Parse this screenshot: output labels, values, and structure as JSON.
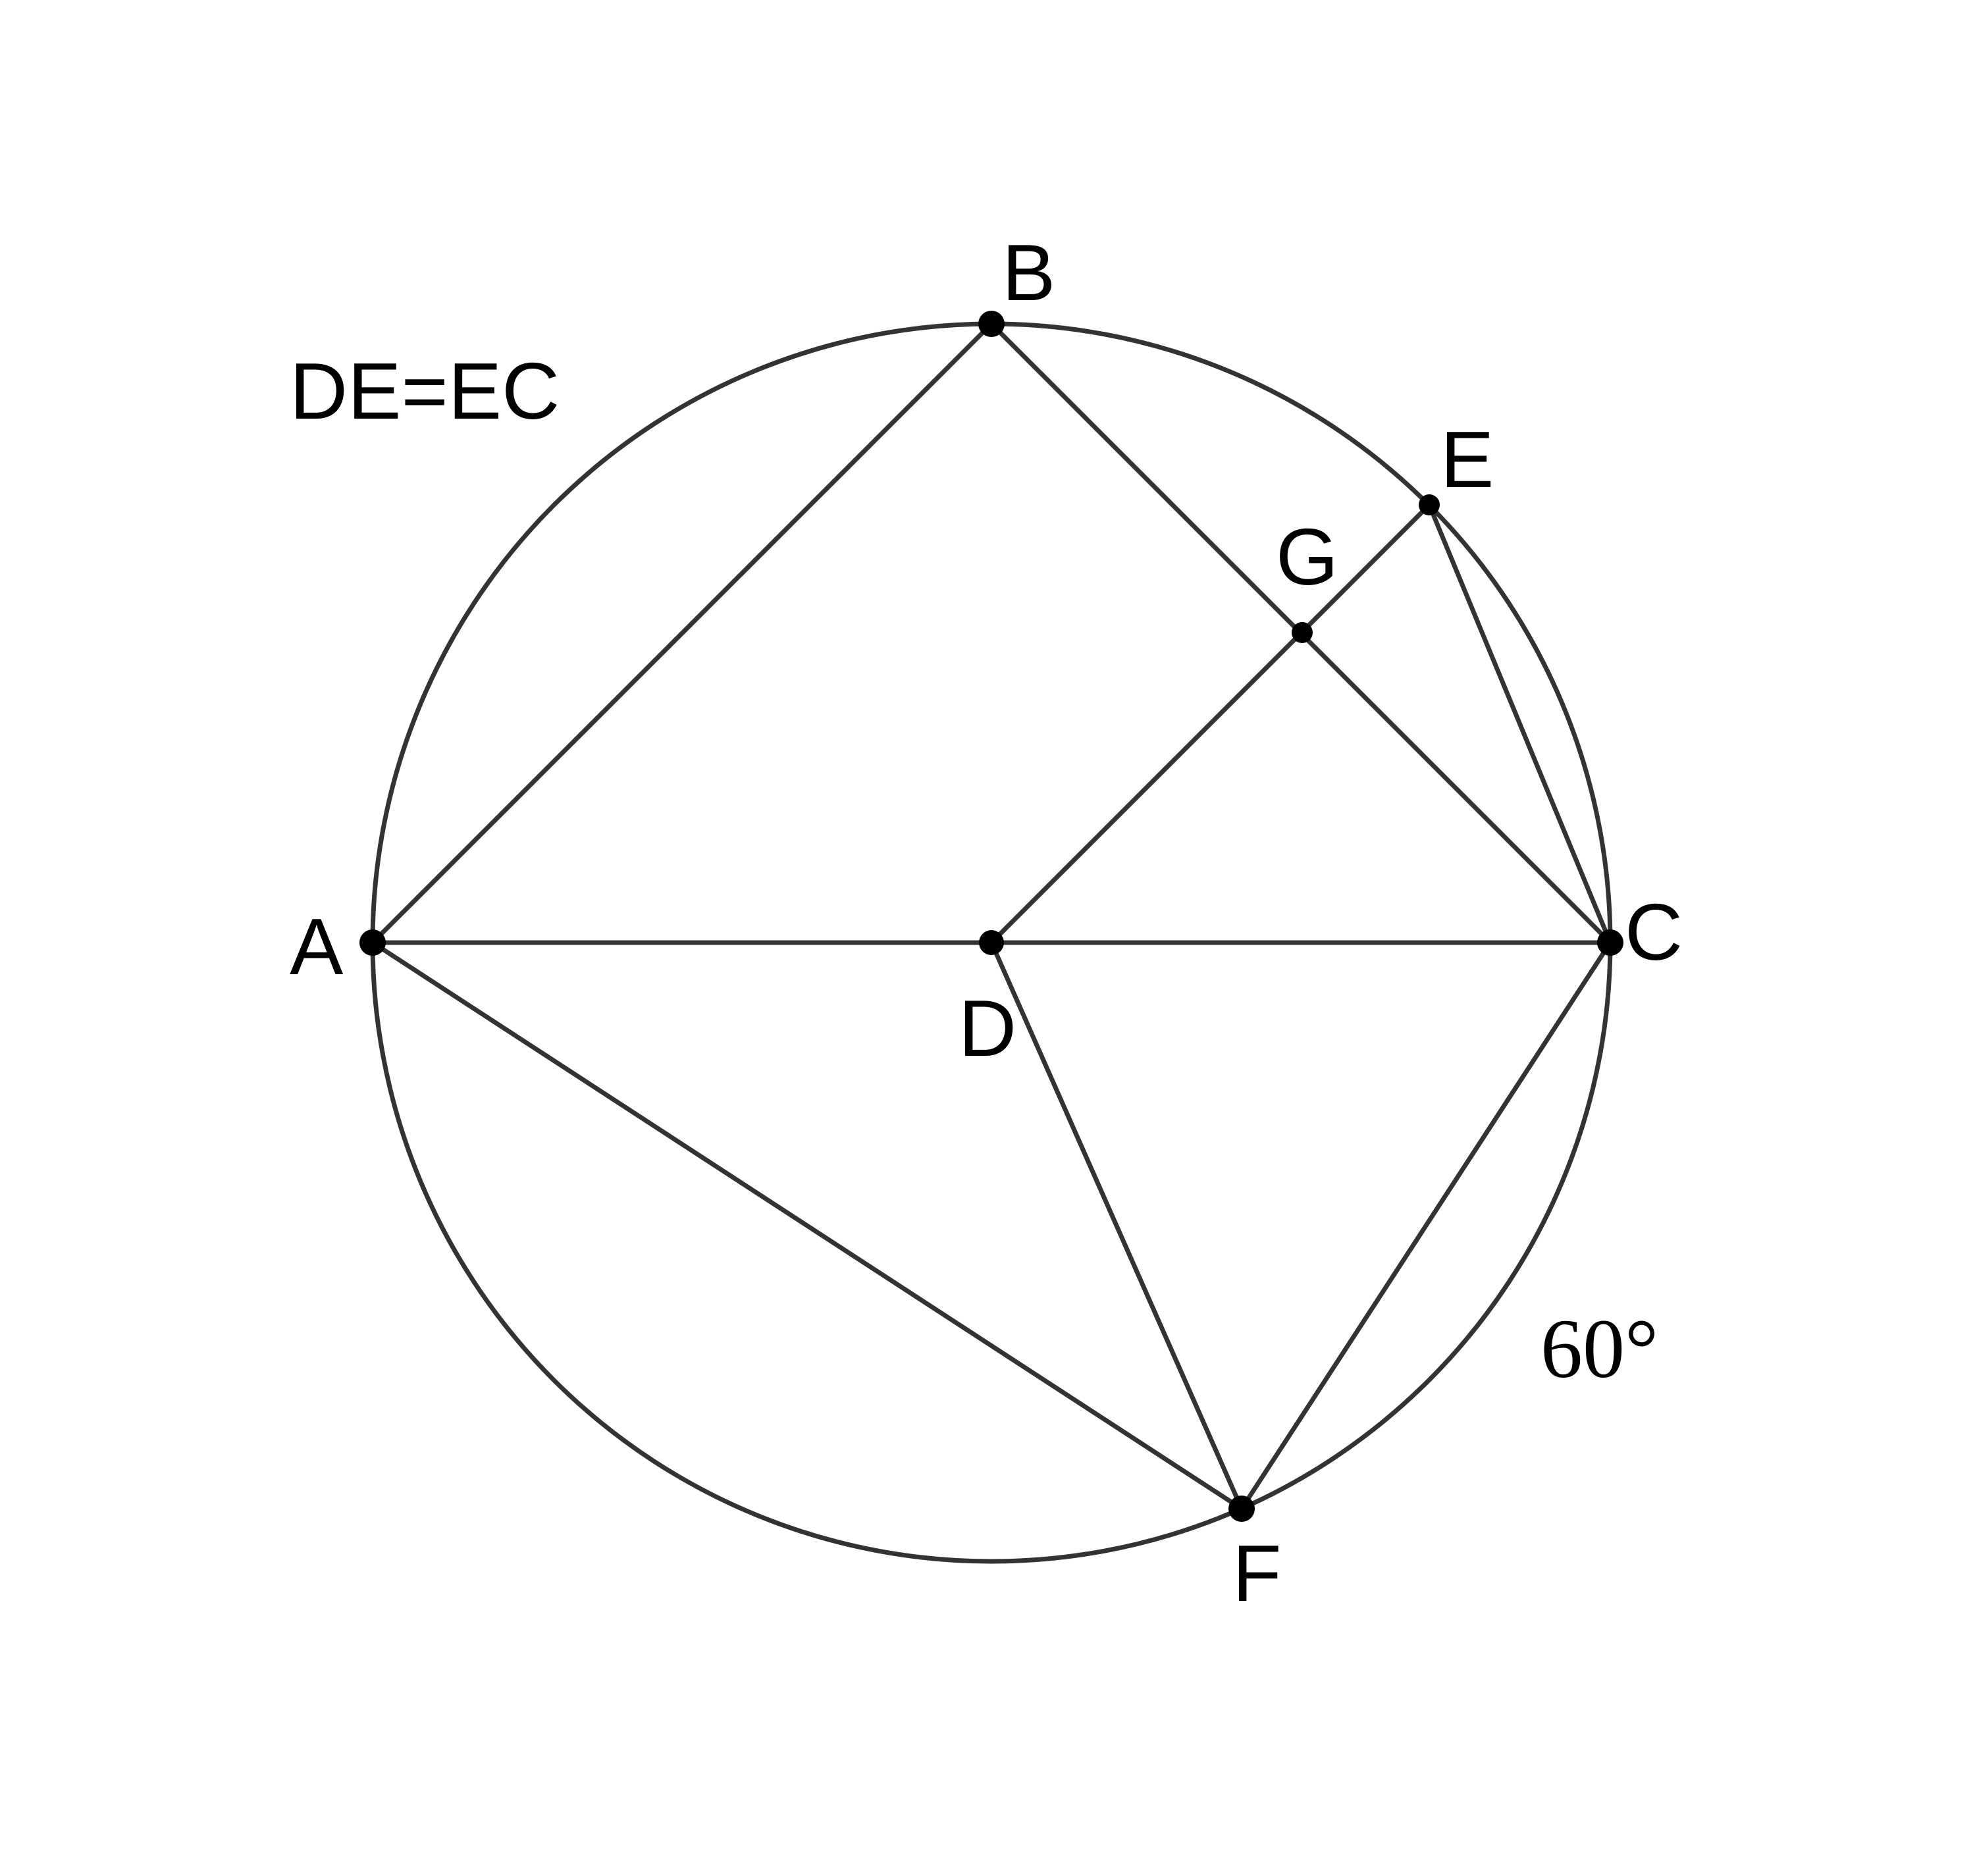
{
  "diagram": {
    "note": "DE=EC",
    "angle_label": "60°",
    "points": [
      {
        "id": "A",
        "label": "A"
      },
      {
        "id": "B",
        "label": "B"
      },
      {
        "id": "C",
        "label": "C"
      },
      {
        "id": "D",
        "label": "D"
      },
      {
        "id": "E",
        "label": "E"
      },
      {
        "id": "F",
        "label": "F"
      },
      {
        "id": "G",
        "label": "G"
      }
    ],
    "segments": [
      "AB",
      "BC",
      "AC",
      "DE",
      "EC",
      "AF",
      "DF",
      "CF"
    ],
    "circle": {
      "center": "D",
      "through": [
        "A",
        "B",
        "C",
        "E",
        "F"
      ]
    }
  }
}
